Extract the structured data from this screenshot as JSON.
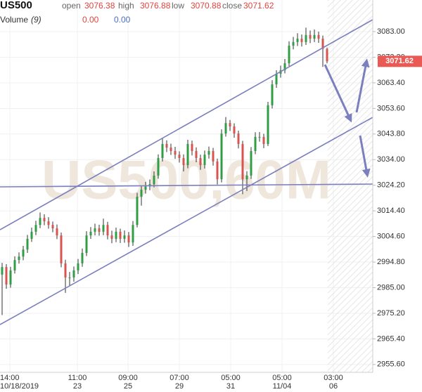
{
  "chart_data": {
    "type": "candlestick",
    "title": "US500",
    "watermark": "US500,60M",
    "ohlc_labels": [
      "open",
      "high",
      "low",
      "close"
    ],
    "indicator": {
      "name": "Volume",
      "param": "(9)",
      "values": [
        "0.00",
        "0.00"
      ],
      "colors": [
        "#e0453f",
        "#4a6fc2"
      ]
    },
    "up_color": "#2f9e44",
    "down_color": "#d9534f",
    "last_price_color": "#ea5a55",
    "open": [
      2990.0,
      2992.9,
      2986.2,
      2991.6,
      2995.6,
      2996.9,
      2999.6,
      3003.7,
      3006.4,
      3009.0,
      3011.7,
      3010.4,
      3009.0,
      3007.7,
      3005.0,
      2994.3,
      2988.9,
      2988.9,
      2991.6,
      2994.3,
      2998.3,
      3005.0,
      3006.4,
      3007.7,
      3006.4,
      3009.0,
      3005.0,
      3003.7,
      3006.4,
      3003.7,
      3005.0,
      3002.3,
      3009.0,
      3019.8,
      3022.5,
      3023.8,
      3024.6,
      3027.9,
      3034.6,
      3040.0,
      3038.6,
      3037.3,
      3035.9,
      3034.6,
      3031.9,
      3040.0,
      3037.3,
      3034.6,
      3031.9,
      3035.9,
      3037.3,
      3033.3,
      3026.5,
      3044.0,
      3048.0,
      3046.7,
      3044.0,
      3040.0,
      3026.5,
      3027.9,
      3037.3,
      3042.7,
      3042.7,
      3040.0,
      3054.8,
      3062.8,
      3066.9,
      3068.2,
      3070.9,
      3077.6,
      3079.0,
      3080.3,
      3079.0,
      3081.7,
      3080.3,
      3081.7,
      3080.3,
      3076.38
    ],
    "high": [
      2994.5,
      2994.0,
      2993.0,
      2997.0,
      2998.5,
      3001.0,
      3005.2,
      3008.0,
      3010.6,
      3013.8,
      3013.1,
      3012.0,
      3010.3,
      3009.2,
      3006.1,
      2995.7,
      2991.0,
      2993.1,
      2996.0,
      3000.0,
      3006.6,
      3008.2,
      3009.5,
      3009.1,
      3011.4,
      3010.2,
      3006.8,
      3008.0,
      3007.6,
      3006.9,
      3006.3,
      3010.5,
      3021.3,
      3024.0,
      3025.5,
      3026.4,
      3029.5,
      3036.0,
      3042.1,
      3041.4,
      3040.1,
      3038.9,
      3037.2,
      3036.0,
      3041.6,
      3041.3,
      3038.7,
      3035.9,
      3037.5,
      3039.0,
      3038.5,
      3034.4,
      3045.6,
      3050.3,
      3049.2,
      3047.9,
      3045.1,
      3041.2,
      3029.6,
      3038.8,
      3044.5,
      3044.6,
      3043.9,
      3056.1,
      3064.4,
      3068.2,
      3070.0,
      3072.5,
      3079.3,
      3081.0,
      3082.4,
      3081.9,
      3084.5,
      3083.4,
      3083.8,
      3083.0,
      3081.5,
      3076.88
    ],
    "low": [
      2974.5,
      2984.6,
      2985.0,
      2990.4,
      2994.2,
      2995.5,
      2998.3,
      3002.5,
      3005.1,
      3007.8,
      3008.9,
      3007.6,
      3006.2,
      3003.6,
      2992.8,
      2983.0,
      2985.5,
      2987.3,
      2990.2,
      2993.0,
      2997.1,
      3003.7,
      3005.0,
      3004.9,
      3005.1,
      3003.5,
      3002.0,
      3002.4,
      3002.1,
      3002.2,
      3000.6,
      3001.0,
      3008.1,
      3016.4,
      3021.0,
      3022.3,
      3023.4,
      3026.7,
      3033.3,
      3036.9,
      3035.8,
      3034.3,
      3032.9,
      3029.5,
      3030.7,
      3035.6,
      3033.0,
      3030.1,
      3030.6,
      3034.4,
      3031.7,
      3024.5,
      3025.3,
      3042.8,
      3045.0,
      3042.4,
      3038.3,
      3020.8,
      3022.0,
      3026.6,
      3036.1,
      3040.9,
      3038.4,
      3039.2,
      3053.6,
      3061.5,
      3065.4,
      3067.0,
      3069.8,
      3076.2,
      3077.5,
      3077.3,
      3077.9,
      3078.6,
      3079.0,
      3078.7,
      3069.5,
      3070.88
    ],
    "close": [
      2992.9,
      2986.2,
      2991.6,
      2995.6,
      2996.9,
      2999.6,
      3003.7,
      3006.4,
      3009.0,
      3011.7,
      3010.4,
      3009.0,
      3007.7,
      3005.0,
      2994.3,
      2988.9,
      2988.9,
      2991.6,
      2994.3,
      2998.3,
      3005.0,
      3006.4,
      3007.7,
      3006.4,
      3009.0,
      3005.0,
      3003.7,
      3006.4,
      3003.7,
      3005.0,
      3002.3,
      3009.0,
      3019.8,
      3022.5,
      3023.8,
      3024.6,
      3027.9,
      3034.6,
      3040.0,
      3038.6,
      3037.3,
      3035.9,
      3034.6,
      3031.9,
      3040.0,
      3037.3,
      3034.6,
      3031.9,
      3035.9,
      3037.3,
      3033.3,
      3026.5,
      3044.0,
      3048.0,
      3046.7,
      3044.0,
      3040.0,
      3026.5,
      3027.9,
      3037.3,
      3042.7,
      3042.7,
      3040.0,
      3054.8,
      3062.8,
      3066.9,
      3068.2,
      3070.9,
      3077.6,
      3079.0,
      3080.3,
      3079.0,
      3081.7,
      3080.3,
      3081.7,
      3080.3,
      3076.4,
      3071.62
    ],
    "ylim": [
      2952.6,
      3095.1
    ],
    "yticks": [
      {
        "value": 2955.6,
        "label": "2955.60"
      },
      {
        "value": 2965.4,
        "label": "2965.40"
      },
      {
        "value": 2975.2,
        "label": "2975.20"
      },
      {
        "value": 2985.0,
        "label": "2985.00"
      },
      {
        "value": 2994.8,
        "label": "2994.80"
      },
      {
        "value": 3004.6,
        "label": "3004.60"
      },
      {
        "value": 3014.4,
        "label": "3014.40"
      },
      {
        "value": 3024.2,
        "label": "3024.20"
      },
      {
        "value": 3034.0,
        "label": "3034.00"
      },
      {
        "value": 3043.8,
        "label": "3043.80"
      },
      {
        "value": 3053.6,
        "label": "3053.60"
      },
      {
        "value": 3063.4,
        "label": "3063.40"
      },
      {
        "value": 3073.2,
        "label": "3073.20"
      },
      {
        "value": 3083.0,
        "label": "3083.00"
      }
    ],
    "xticks": [
      {
        "time": "14:00",
        "date": "10/18/2019"
      },
      {
        "time": "11:00",
        "date": "23"
      },
      {
        "time": "09:00",
        "date": "25"
      },
      {
        "time": "07:00",
        "date": "29"
      },
      {
        "time": "05:00",
        "date": "31"
      },
      {
        "time": "05:00",
        "date": "11/04"
      },
      {
        "time": "03:00",
        "date": "06"
      }
    ],
    "grid": true
  }
}
